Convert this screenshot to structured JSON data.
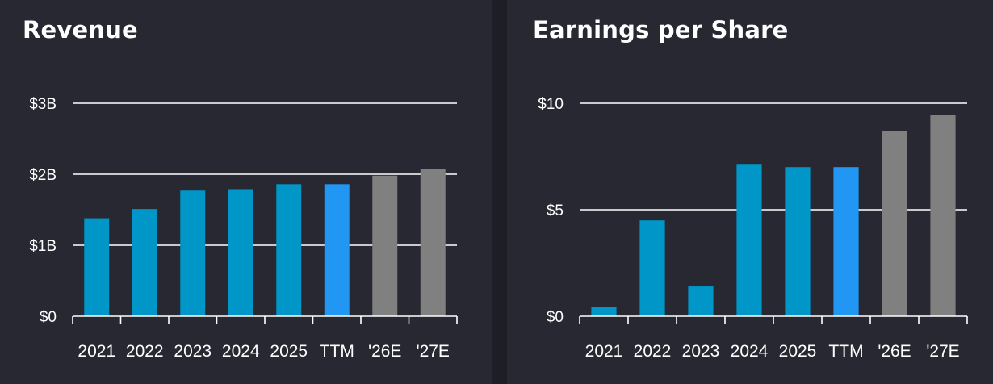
{
  "colors": {
    "page_background": "#1e1f26",
    "panel_background": "#272831",
    "historical": "#0096c7",
    "ttm": "#2196f3",
    "estimate": "#808080",
    "gridline": "#ffffff",
    "text": "#ffffff"
  },
  "chart_data": [
    {
      "type": "bar",
      "title": "Revenue",
      "categories": [
        "2021",
        "2022",
        "2023",
        "2024",
        "2025",
        "TTM",
        "'26E",
        "'27E"
      ],
      "values": [
        1.38,
        1.51,
        1.77,
        1.79,
        1.86,
        1.86,
        1.98,
        2.07
      ],
      "bar_kinds": [
        "historical",
        "historical",
        "historical",
        "historical",
        "historical",
        "ttm",
        "estimate",
        "estimate"
      ],
      "yticks": [
        0,
        1,
        2,
        3
      ],
      "ytick_labels": [
        "$0",
        "$1B",
        "$2B",
        "$3B"
      ],
      "ylim": [
        0,
        3
      ],
      "grid": true,
      "legend": "none"
    },
    {
      "type": "bar",
      "title": "Earnings per Share",
      "categories": [
        "2021",
        "2022",
        "2023",
        "2024",
        "2025",
        "TTM",
        "'26E",
        "'27E"
      ],
      "values": [
        0.45,
        4.5,
        1.4,
        7.15,
        7.0,
        7.0,
        8.7,
        9.45
      ],
      "bar_kinds": [
        "historical",
        "historical",
        "historical",
        "historical",
        "historical",
        "ttm",
        "estimate",
        "estimate"
      ],
      "yticks": [
        0,
        5,
        10
      ],
      "ytick_labels": [
        "$0",
        "$5",
        "$10"
      ],
      "ylim": [
        0,
        10
      ],
      "grid": true,
      "legend": "none"
    }
  ]
}
